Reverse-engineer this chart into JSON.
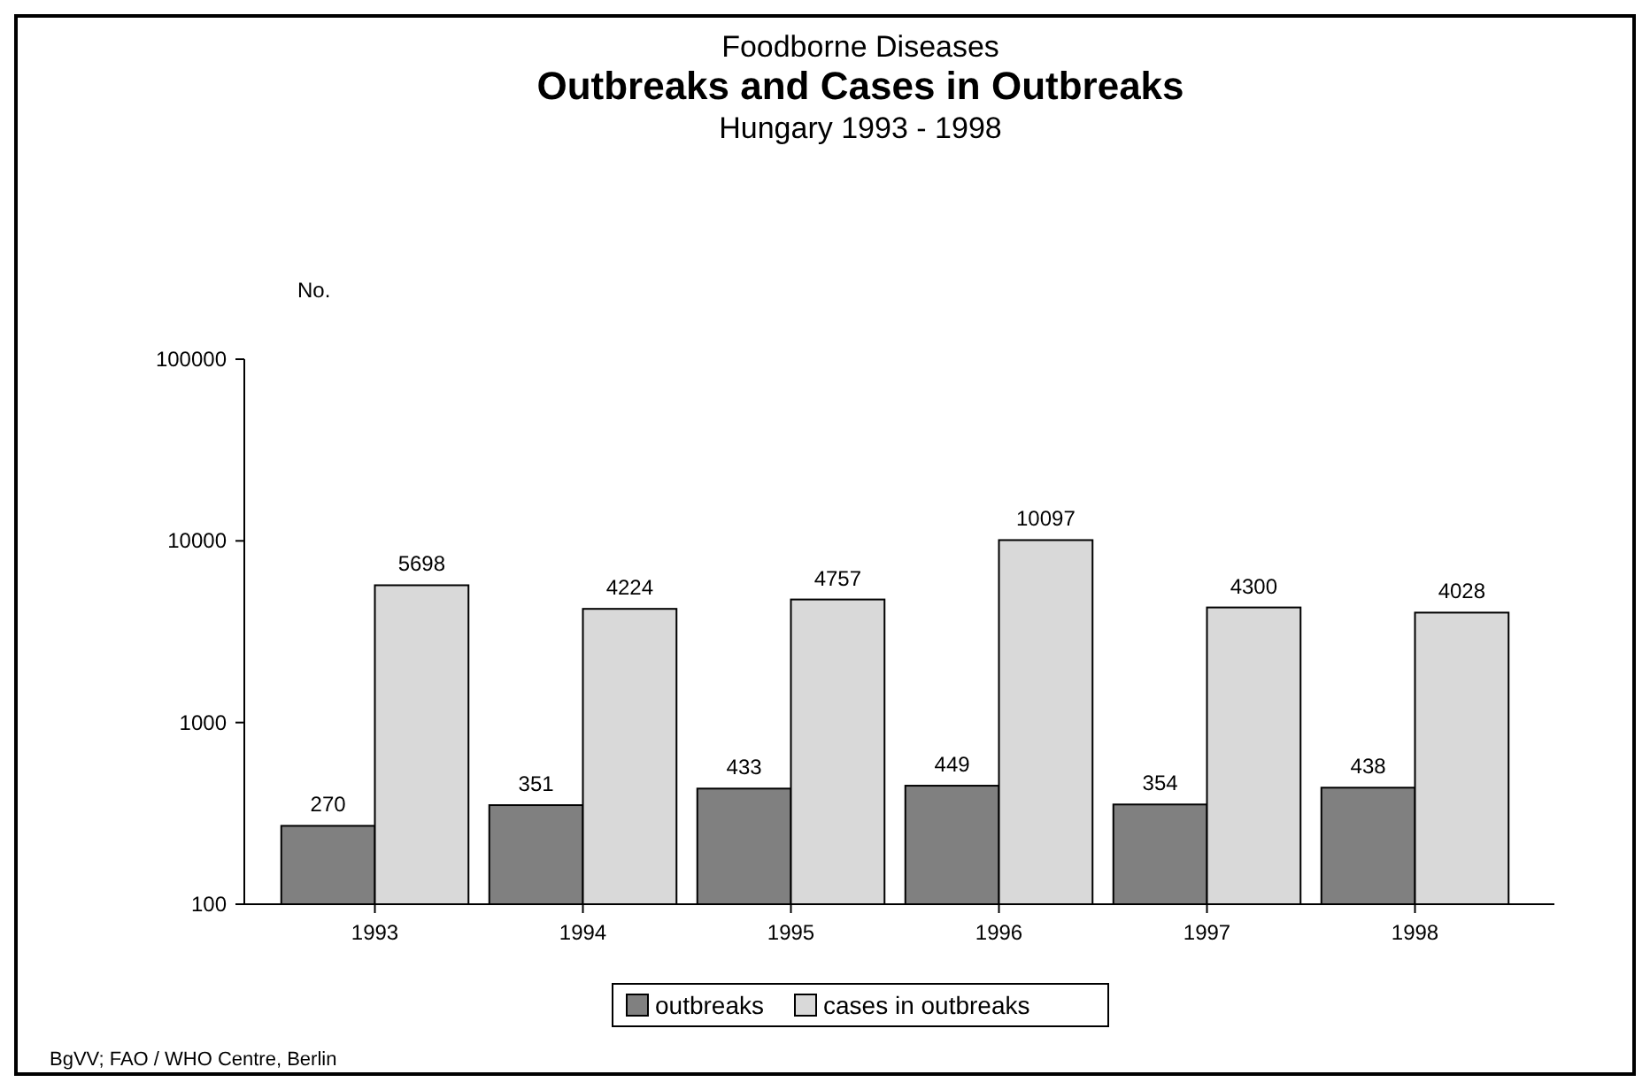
{
  "chart_data": {
    "type": "bar",
    "title": "Outbreaks and Cases in Outbreaks",
    "subtitle": "Hungary 1993 - 1998",
    "ylabel": "No.",
    "annotations": [
      "Foodborne Diseases",
      "BgVV; FAO / WHO Centre, Berlin"
    ],
    "categories": [
      "1993",
      "1994",
      "1995",
      "1996",
      "1997",
      "1998"
    ],
    "series": [
      {
        "name": "outbreaks",
        "color": "#808080",
        "values": [
          270,
          351,
          433,
          449,
          354,
          438
        ]
      },
      {
        "name": "cases in outbreaks",
        "color": "#d9d9d9",
        "values": [
          5698,
          4224,
          4757,
          10097,
          4300,
          4028
        ]
      }
    ],
    "log": true,
    "ylim": [
      100,
      100000
    ],
    "yticks": [
      100,
      1000,
      10000,
      100000
    ],
    "grid": false,
    "legend": "bottom",
    "data_labels": true
  }
}
